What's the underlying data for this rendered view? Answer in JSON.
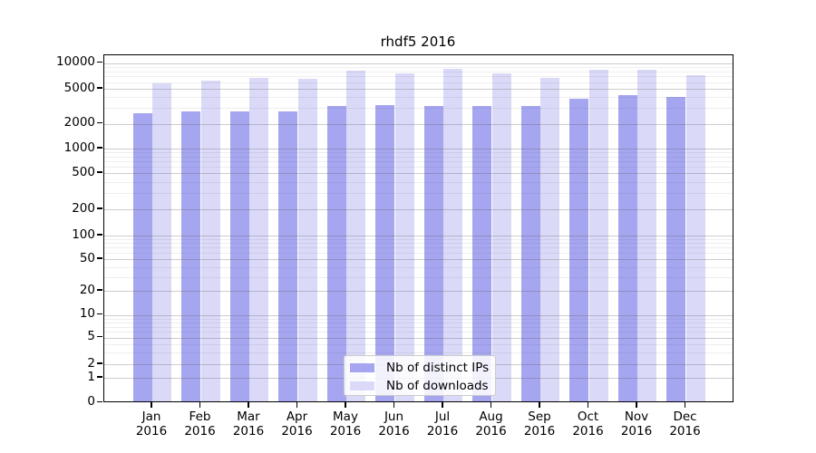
{
  "figure": {
    "title": "rhdf5 2016"
  },
  "y_axis": {
    "tick_labels": [
      "10000",
      "5000",
      "2000",
      "1000",
      "500",
      "200",
      "100",
      "50",
      "20",
      "10",
      "5",
      "2",
      "1",
      "0"
    ]
  },
  "x_axis": {
    "months": [
      "Jan",
      "Feb",
      "Mar",
      "Apr",
      "May",
      "Jun",
      "Jul",
      "Aug",
      "Sep",
      "Oct",
      "Nov",
      "Dec"
    ],
    "year": "2016"
  },
  "legend": {
    "items": [
      {
        "label": "Nb of distinct IPs",
        "color": "#a5a5f0"
      },
      {
        "label": "Nb of downloads",
        "color": "#dadaf8"
      }
    ]
  },
  "chart_data": {
    "type": "bar",
    "title": "rhdf5 2016",
    "categories": [
      "Jan 2016",
      "Feb 2016",
      "Mar 2016",
      "Apr 2016",
      "May 2016",
      "Jun 2016",
      "Jul 2016",
      "Aug 2016",
      "Sep 2016",
      "Oct 2016",
      "Nov 2016",
      "Dec 2016"
    ],
    "series": [
      {
        "name": "Nb of distinct IPs",
        "color": "#a5a5f0",
        "values": [
          2480,
          2650,
          2610,
          2620,
          3020,
          3090,
          3000,
          3020,
          3050,
          3700,
          4000,
          3820
        ]
      },
      {
        "name": "Nb of downloads",
        "color": "#dadaf8",
        "values": [
          5450,
          5900,
          6400,
          6250,
          7800,
          7300,
          8200,
          7200,
          6450,
          7900,
          7950,
          6900
        ]
      }
    ],
    "yscale": "symlog",
    "y_ticks": [
      0,
      1,
      2,
      5,
      10,
      20,
      50,
      100,
      200,
      500,
      1000,
      2000,
      5000,
      10000
    ],
    "y_minor_ticks": [
      3,
      4,
      6,
      7,
      8,
      9,
      30,
      40,
      60,
      70,
      80,
      90,
      300,
      400,
      600,
      700,
      800,
      900,
      3000,
      4000,
      6000,
      7000,
      8000,
      9000
    ],
    "ylim": [
      0,
      12500
    ],
    "grid": true,
    "legend_position": "lower center"
  }
}
